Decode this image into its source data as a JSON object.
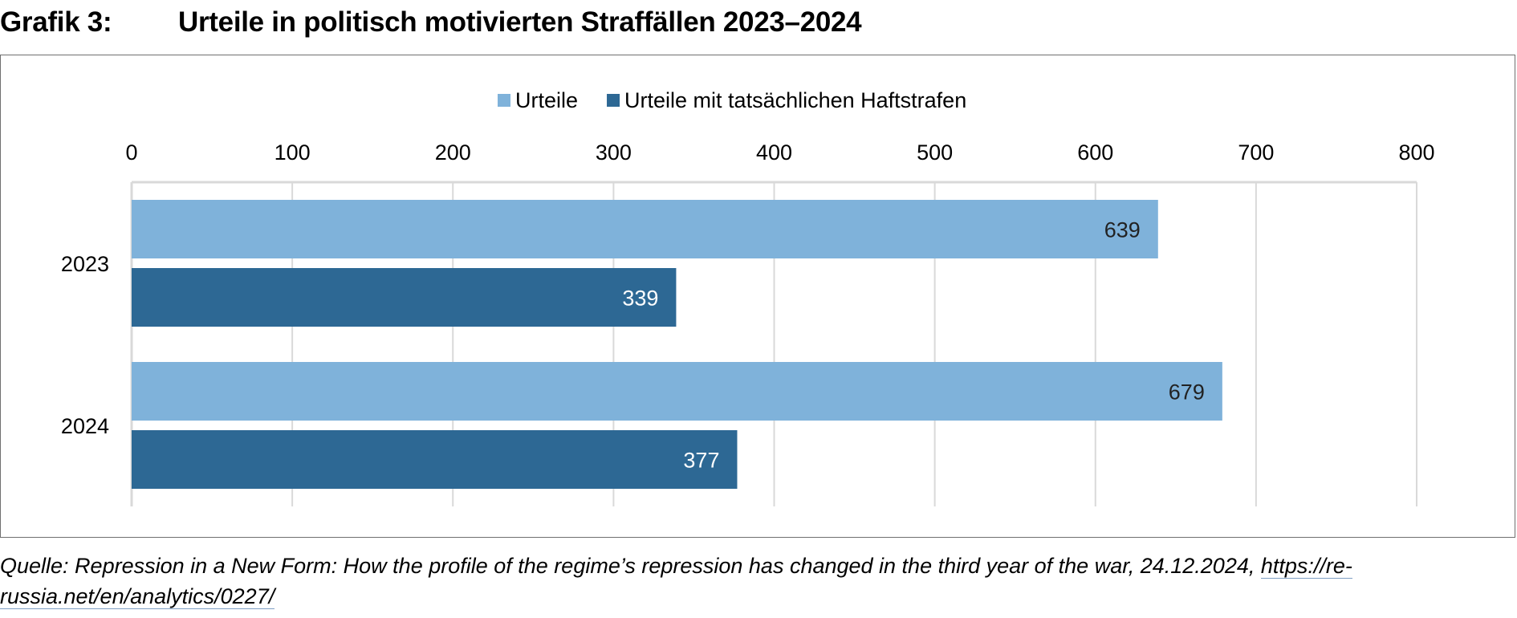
{
  "figure": {
    "label": "Grafik 3:",
    "title": "Urteile in politisch motivierten Straffällen 2023–2024"
  },
  "source": {
    "text": "Quelle: Repression in a New Form: How the profile of the regime’s repression has changed in the third year of the war, 24.12.2024,",
    "link_text": "https://re-russia.net/en/analytics/0227/"
  },
  "chart_data": {
    "type": "bar",
    "orientation": "horizontal",
    "title": "",
    "categories": [
      "2023",
      "2024"
    ],
    "series": [
      {
        "name": "Urteile",
        "values": [
          639,
          679
        ],
        "color": "#7fb2da",
        "label_color": "#222222"
      },
      {
        "name": "Urteile mit tatsächlichen Haftstrafen",
        "values": [
          339,
          377
        ],
        "color": "#2d6894",
        "label_color": "#ffffff"
      }
    ],
    "xlim": [
      0,
      800
    ],
    "xticks": [
      0,
      100,
      200,
      300,
      400,
      500,
      600,
      700,
      800
    ],
    "x_axis_position": "top",
    "grid": true,
    "gridline_color": "#d9d9d9",
    "legend": "top-center",
    "data_labels": true
  }
}
